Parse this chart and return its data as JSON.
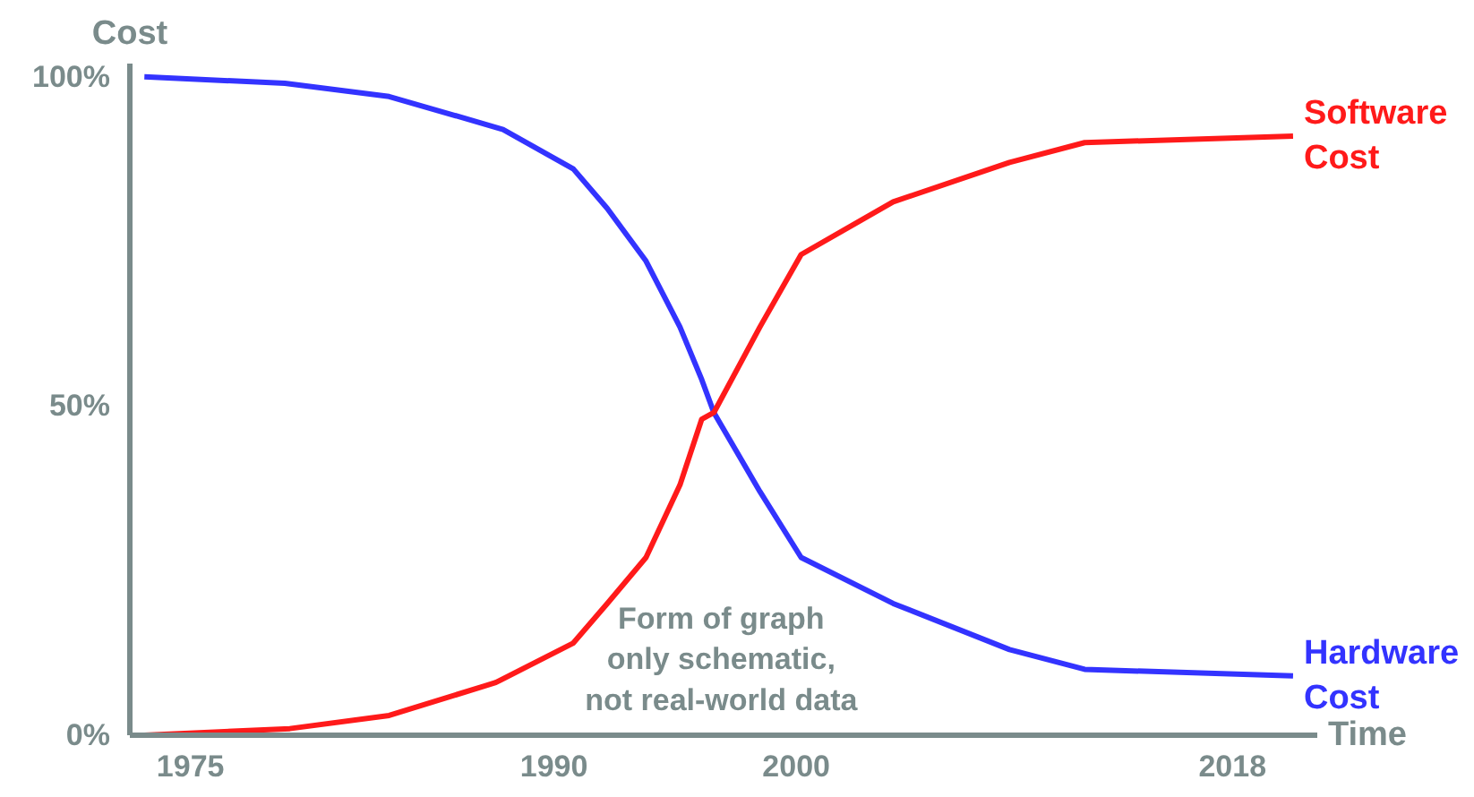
{
  "chart_data": {
    "type": "line",
    "xlabel": "Time",
    "ylabel": "Cost",
    "xlim": [
      1972.5,
      2021.5
    ],
    "ylim": [
      0,
      102
    ],
    "xticks": [
      1975,
      1990,
      2000,
      2018
    ],
    "yticks": [
      {
        "value": 0,
        "label": "0%"
      },
      {
        "value": 50,
        "label": "50%"
      },
      {
        "value": 100,
        "label": "100%"
      }
    ],
    "grid": false,
    "legend": false,
    "marker": "none",
    "line_style": "solid",
    "annotations": [
      "Form of graph\nonly schematic,\nnot real-world data"
    ],
    "series": [
      {
        "name": "Hardware Cost",
        "color": "#3333ff",
        "x": [
          1973.1,
          1978.9,
          1983.2,
          1987.9,
          1990.8,
          1992.2,
          1993.8,
          1995.2,
          1996.1,
          1996.6,
          1998.5,
          2000.2,
          2004.0,
          2008.8,
          2011.9,
          2020.5
        ],
        "values": [
          100,
          99,
          97,
          92,
          86,
          80,
          72,
          62,
          54,
          49,
          37,
          27,
          20,
          13,
          10,
          9
        ]
      },
      {
        "name": "Software Cost",
        "color": "#ff1a1a",
        "x": [
          1973.1,
          1979.1,
          1983.2,
          1987.6,
          1990.8,
          1992.2,
          1993.8,
          1995.2,
          1996.1,
          1996.6,
          1998.5,
          2000.2,
          2004.0,
          2008.8,
          2011.9,
          2020.5
        ],
        "values": [
          0,
          1,
          3,
          8,
          14,
          20,
          27,
          38,
          48,
          49,
          62,
          73,
          81,
          87,
          90,
          91
        ]
      }
    ]
  }
}
